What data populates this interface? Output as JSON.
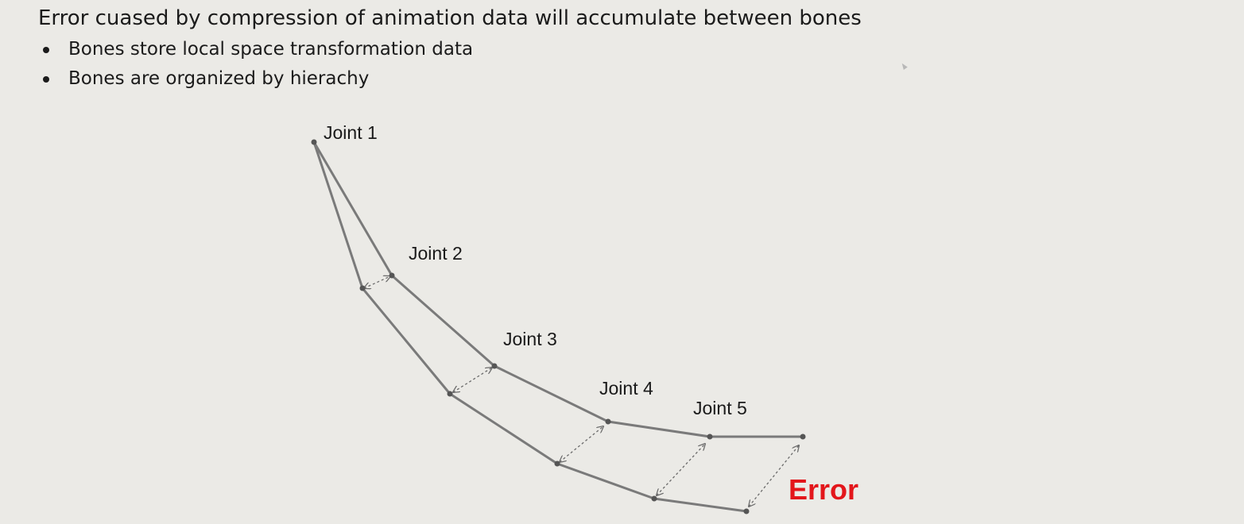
{
  "title": "Error cuased by compression of animation data will accumulate between bones",
  "bullets": [
    "Bones store local space transformation data",
    "Bones are organized by hierachy"
  ],
  "diagram": {
    "joints": [
      {
        "label": "Joint 1"
      },
      {
        "label": "Joint 2"
      },
      {
        "label": "Joint 3"
      },
      {
        "label": "Joint 4"
      },
      {
        "label": "Joint 5"
      }
    ],
    "error_label": "Error",
    "colors": {
      "bone": "#7a7a7a",
      "joint": "#555555",
      "arrow": "#6b6b6b",
      "error": "#e3161b"
    }
  }
}
